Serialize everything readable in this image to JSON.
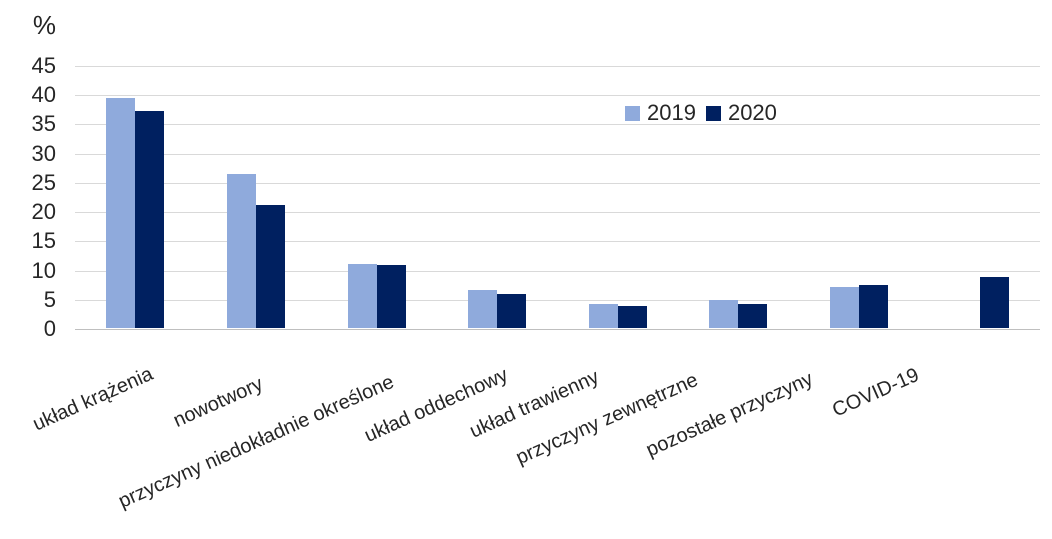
{
  "chart_data": {
    "type": "bar",
    "title": "",
    "xlabel": "",
    "ylabel": "%",
    "categories": [
      "układ krążenia",
      "nowotwory",
      "przyczyny niedokładnie określone",
      "układ oddechowy",
      "układ trawienny",
      "przyczyny zewnętrzne",
      "pozostałe przyczyny",
      "COVID-19"
    ],
    "series": [
      {
        "name": "2019",
        "color": "#8FAADC",
        "values": [
          39.3,
          26.4,
          11.0,
          6.5,
          4.1,
          4.8,
          7.1,
          null
        ]
      },
      {
        "name": "2020",
        "color": "#002060",
        "values": [
          37.2,
          21.1,
          10.8,
          5.9,
          3.8,
          4.1,
          7.4,
          8.8
        ]
      }
    ],
    "ylim": [
      0,
      45
    ],
    "yticks": [
      0,
      5,
      10,
      15,
      20,
      25,
      30,
      35,
      40,
      45
    ],
    "grid": true,
    "legend_position": "inside-top-right",
    "colors": {
      "background": "#FFFFFF",
      "gridline": "#D9D9D9",
      "axis_line": "#BFBFBF",
      "text": "#262626"
    }
  }
}
